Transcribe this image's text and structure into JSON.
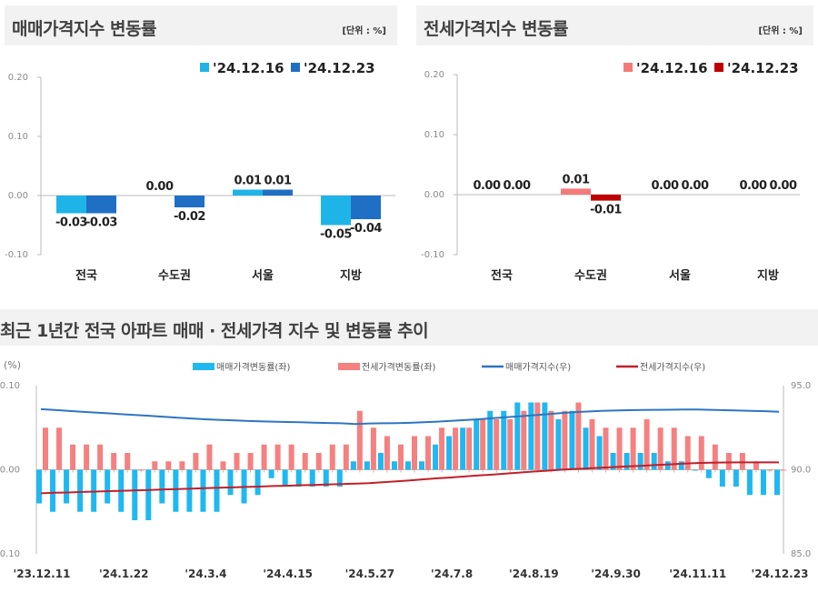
{
  "panels": {
    "sale": {
      "title": "매매가격지수 변동률",
      "unit": "[단위 : %]"
    },
    "jeonse": {
      "title": "전세가격지수 변동률",
      "unit": "[단위 : %]"
    },
    "trend": {
      "title": "최근 1년간 전국 아파트 매매 · 전세가격 지수 및 변동률 추이"
    }
  },
  "chart_data": [
    {
      "type": "bar",
      "title": "매매가격지수 변동률",
      "categories": [
        "전국",
        "수도권",
        "서울",
        "지방"
      ],
      "series": [
        {
          "name": "'24.12.16",
          "color": "#1fb4e8",
          "values": [
            -0.03,
            0.0,
            0.01,
            -0.05
          ]
        },
        {
          "name": "'24.12.23",
          "color": "#1f6fc5",
          "values": [
            -0.03,
            -0.02,
            0.01,
            -0.04
          ]
        }
      ],
      "ylim": [
        -0.1,
        0.2
      ],
      "yticks": [
        "0.20",
        "0.10",
        "0.00",
        "-0.10"
      ],
      "legend": "top-right"
    },
    {
      "type": "bar",
      "title": "전세가격지수 변동률",
      "categories": [
        "전국",
        "수도권",
        "서울",
        "지방"
      ],
      "series": [
        {
          "name": "'24.12.16",
          "color": "#f47a7a",
          "values": [
            0.0,
            0.01,
            0.0,
            0.0
          ]
        },
        {
          "name": "'24.12.23",
          "color": "#c00000",
          "values": [
            0.0,
            -0.01,
            0.0,
            0.0
          ]
        }
      ],
      "ylim": [
        -0.1,
        0.2
      ],
      "yticks": [
        "0.20",
        "0.10",
        "0.00",
        "-0.10"
      ],
      "legend": "top-right"
    },
    {
      "type": "bar+line",
      "title": "최근 1년간 전국 아파트 매매 · 전세가격 지수 및 변동률 추이",
      "ylabel_left": "(%)",
      "ylim_left": [
        -0.1,
        0.1
      ],
      "yticks_left": [
        "0.10",
        "0.00",
        "-0.10"
      ],
      "ylim_right": [
        85.0,
        95.0
      ],
      "yticks_right": [
        "95.0",
        "90.0",
        "85.0"
      ],
      "xtick_labels": [
        "'23.12.11",
        "'24.1.22",
        "'24.3.4",
        "'24.4.15",
        "'24.5.27",
        "'24.7.8",
        "'24.8.19",
        "'24.9.30",
        "'24.11.11",
        "'24.12.23"
      ],
      "legend": "top",
      "series": [
        {
          "name": "매매가격변동률(좌)",
          "kind": "bar",
          "axis": "left",
          "color": "#1fb8f0",
          "values": [
            -0.04,
            -0.05,
            -0.04,
            -0.05,
            -0.05,
            -0.04,
            -0.05,
            -0.06,
            -0.06,
            -0.04,
            -0.05,
            -0.05,
            -0.05,
            -0.05,
            -0.03,
            -0.04,
            -0.03,
            -0.01,
            -0.02,
            -0.02,
            -0.02,
            -0.02,
            -0.02,
            0.01,
            0.01,
            0.02,
            0.01,
            0.01,
            0.01,
            0.03,
            0.04,
            0.05,
            0.06,
            0.07,
            0.07,
            0.08,
            0.08,
            0.08,
            0.06,
            0.07,
            0.05,
            0.04,
            0.02,
            0.02,
            0.02,
            0.02,
            0.01,
            0.01,
            0.0,
            -0.01,
            -0.02,
            -0.02,
            -0.03,
            -0.03,
            -0.03
          ]
        },
        {
          "name": "전세가격변동률(좌)",
          "kind": "bar",
          "axis": "left",
          "color": "#f58080",
          "values": [
            0.05,
            0.05,
            0.03,
            0.03,
            0.03,
            0.02,
            0.02,
            0.0,
            0.01,
            0.01,
            0.01,
            0.02,
            0.03,
            0.01,
            0.02,
            0.02,
            0.03,
            0.03,
            0.03,
            0.02,
            0.02,
            0.03,
            0.03,
            0.07,
            0.05,
            0.04,
            0.03,
            0.04,
            0.04,
            0.05,
            0.05,
            0.05,
            0.06,
            0.06,
            0.06,
            0.07,
            0.08,
            0.07,
            0.07,
            0.08,
            0.06,
            0.05,
            0.05,
            0.05,
            0.06,
            0.05,
            0.05,
            0.04,
            0.04,
            0.03,
            0.02,
            0.02,
            0.01,
            0.0,
            0.0
          ]
        },
        {
          "name": "매매가격지수(우)",
          "kind": "line",
          "axis": "right",
          "color": "#2e75c0",
          "values": [
            93.6,
            93.55,
            93.5,
            93.45,
            93.4,
            93.35,
            93.3,
            93.25,
            93.2,
            93.15,
            93.1,
            93.05,
            93.0,
            92.97,
            92.94,
            92.91,
            92.88,
            92.86,
            92.84,
            92.82,
            92.8,
            92.78,
            92.76,
            92.72,
            92.75,
            92.76,
            92.77,
            92.79,
            92.82,
            92.86,
            92.9,
            92.95,
            93.0,
            93.06,
            93.12,
            93.18,
            93.24,
            93.3,
            93.36,
            93.42,
            93.46,
            93.5,
            93.52,
            93.54,
            93.55,
            93.56,
            93.57,
            93.58,
            93.58,
            93.56,
            93.54,
            93.52,
            93.5,
            93.48,
            93.45
          ]
        },
        {
          "name": "전세가격지수(우)",
          "kind": "line",
          "axis": "right",
          "color": "#c0202a",
          "values": [
            88.6,
            88.63,
            88.65,
            88.68,
            88.7,
            88.73,
            88.75,
            88.78,
            88.8,
            88.83,
            88.85,
            88.88,
            88.9,
            88.93,
            88.95,
            88.98,
            89.0,
            89.03,
            89.05,
            89.08,
            89.1,
            89.13,
            89.15,
            89.18,
            89.2,
            89.26,
            89.31,
            89.37,
            89.43,
            89.49,
            89.54,
            89.6,
            89.66,
            89.71,
            89.77,
            89.83,
            89.89,
            89.94,
            90.0,
            90.04,
            90.08,
            90.12,
            90.16,
            90.2,
            90.24,
            90.28,
            90.32,
            90.36,
            90.4,
            90.42,
            90.43,
            90.44,
            90.44,
            90.44,
            90.44
          ]
        }
      ]
    }
  ]
}
